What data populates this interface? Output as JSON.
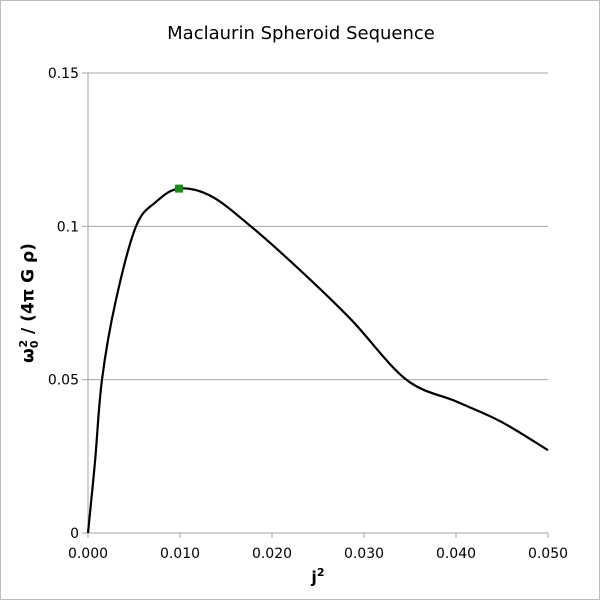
{
  "chart_data": {
    "type": "line",
    "title": "Maclaurin Spheroid Sequence",
    "xlabel": "j",
    "xlabel_sup": "2",
    "ylabel": {
      "omega": "ω",
      "sub": "0",
      "sup": "2",
      "rest": " / (4π G ρ)"
    },
    "xlim": [
      0,
      0.05
    ],
    "ylim": [
      0,
      0.15
    ],
    "xticks": [
      "0.000",
      "0.010",
      "0.020",
      "0.030",
      "0.040",
      "0.050"
    ],
    "yticks": [
      "0",
      "0.05",
      "0.1",
      "0.15"
    ],
    "grid": "horizontal",
    "series": [
      {
        "color": "#000000",
        "x": [
          0,
          0.00076,
          0.00152,
          0.003,
          0.00522,
          0.0074,
          0.0099,
          0.0134,
          0.0177,
          0.0232,
          0.0286,
          0.0346,
          0.0401,
          0.0449,
          0.05
        ],
        "y": [
          0,
          0.0232,
          0.05,
          0.0755,
          0.1,
          0.108,
          0.1123,
          0.1098,
          0.1,
          0.0853,
          0.0696,
          0.05,
          0.0428,
          0.0363,
          0.027
        ]
      }
    ],
    "marker": {
      "x": 0.0099,
      "y": 0.1123,
      "color": "#1a8a1a",
      "shape": "square"
    }
  }
}
